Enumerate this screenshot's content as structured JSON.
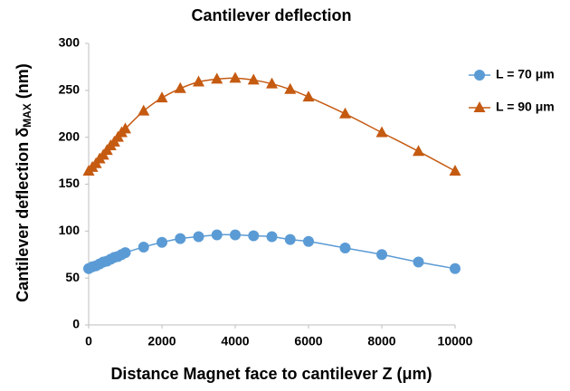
{
  "chart_data": {
    "type": "scatter-line",
    "title": "Cantilever deflection",
    "xlabel": "Distance Magnet face to cantilever Z (μm)",
    "ylabel": [
      "Cantilever deflection δ",
      "MAX",
      " (nm)"
    ],
    "x": [
      0,
      100,
      200,
      300,
      400,
      500,
      600,
      700,
      800,
      900,
      1000,
      1500,
      2000,
      2500,
      3000,
      3500,
      4000,
      4500,
      5000,
      5500,
      6000,
      7000,
      8000,
      9000,
      10000
    ],
    "series": [
      {
        "name": "L = 70 μm",
        "color": "#5b9bd5",
        "marker": "circle",
        "values": [
          60,
          62,
          63,
          65,
          67,
          68,
          70,
          72,
          73,
          75,
          77,
          83,
          88,
          92,
          94,
          96,
          96,
          95,
          94,
          91,
          89,
          82,
          75,
          67,
          60
        ]
      },
      {
        "name": "L = 90 μm",
        "color": "#c55a11",
        "marker": "triangle",
        "values": [
          164,
          168,
          172,
          177,
          181,
          186,
          191,
          195,
          200,
          205,
          209,
          228,
          242,
          252,
          259,
          262,
          263,
          261,
          257,
          251,
          243,
          225,
          205,
          185,
          164
        ]
      }
    ],
    "xlim": [
      0,
      10000
    ],
    "xticks": [
      0,
      2000,
      4000,
      6000,
      8000,
      10000
    ],
    "ylim": [
      0,
      300
    ],
    "yticks": [
      0,
      50,
      100,
      150,
      200,
      250,
      300
    ],
    "grid": false,
    "legend": "right"
  }
}
